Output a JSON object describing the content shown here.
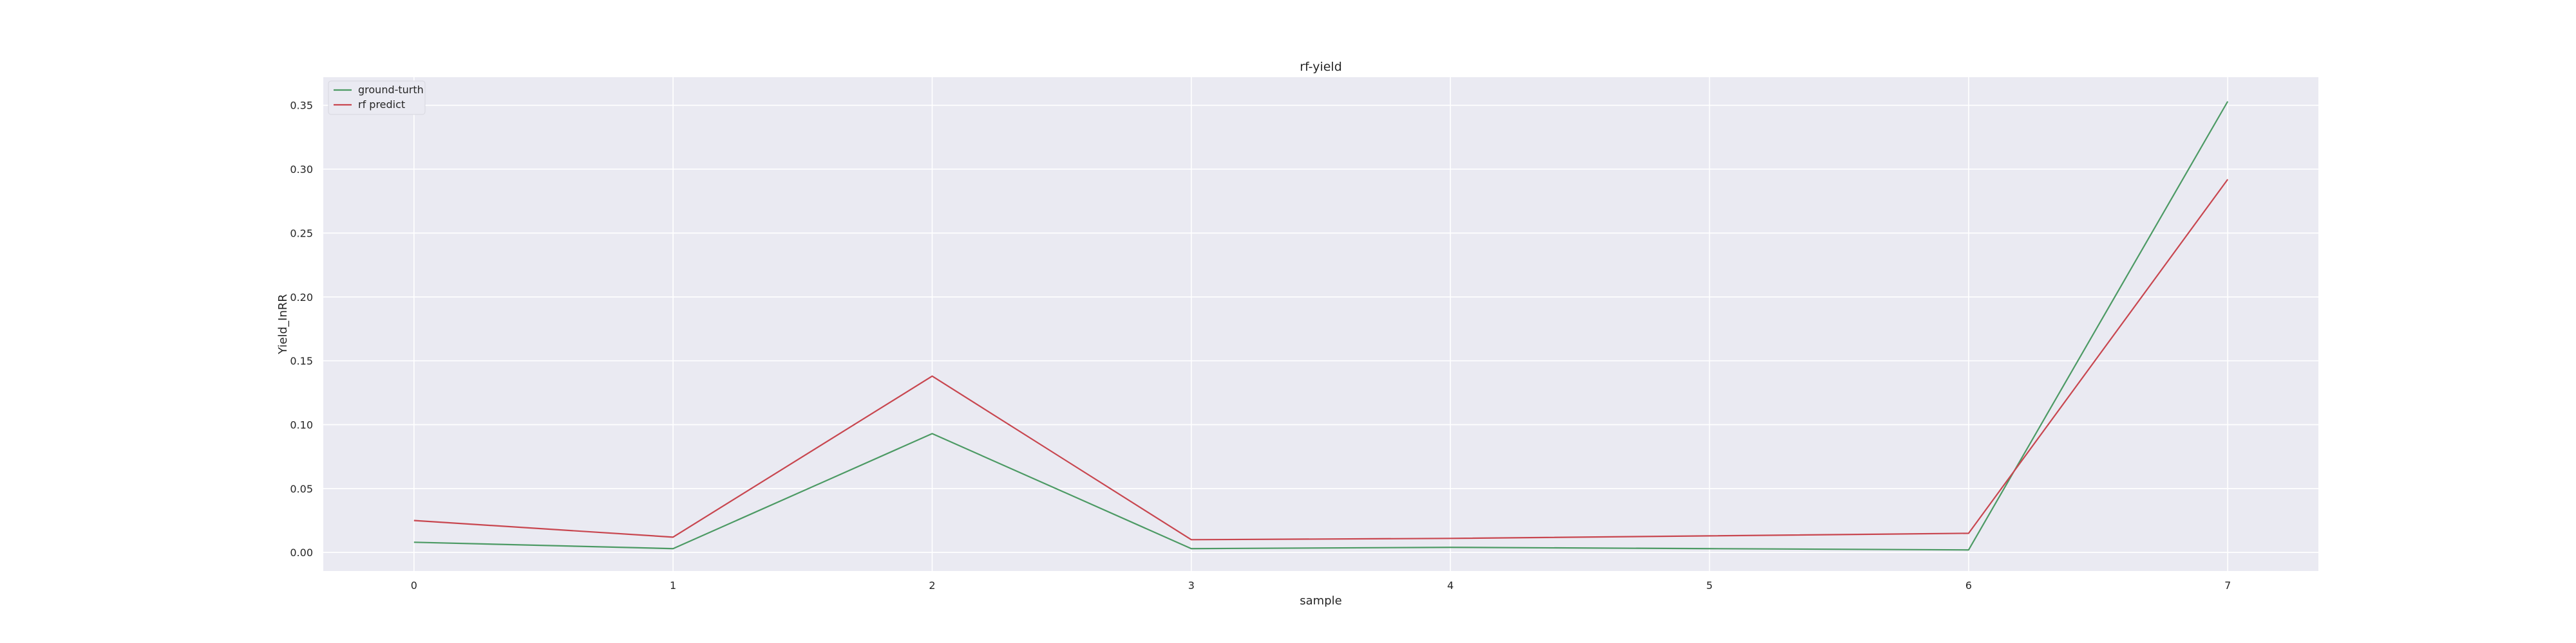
{
  "chart_data": {
    "type": "line",
    "title": "rf-yield",
    "xlabel": "sample",
    "ylabel": "Yield_InRR",
    "x": [
      0,
      1,
      2,
      3,
      4,
      5,
      6,
      7
    ],
    "xlim": [
      -0.35,
      7.35
    ],
    "ylim": [
      -0.0145,
      0.372
    ],
    "xticks": [
      0,
      1,
      2,
      3,
      4,
      5,
      6,
      7
    ],
    "yticks": [
      0.0,
      0.05,
      0.1,
      0.15,
      0.2,
      0.25,
      0.3,
      0.35
    ],
    "grid": true,
    "legend_position": "top-left",
    "series": [
      {
        "name": "ground-turth",
        "color": "#4c9a64",
        "values": [
          0.008,
          0.003,
          0.093,
          0.003,
          0.004,
          0.003,
          0.002,
          0.353
        ]
      },
      {
        "name": "rf predict",
        "color": "#c8464f",
        "values": [
          0.025,
          0.012,
          0.138,
          0.01,
          0.011,
          0.013,
          0.015,
          0.292
        ]
      }
    ],
    "background": "#eaeaf2",
    "gridline_color": "#ffffff"
  }
}
